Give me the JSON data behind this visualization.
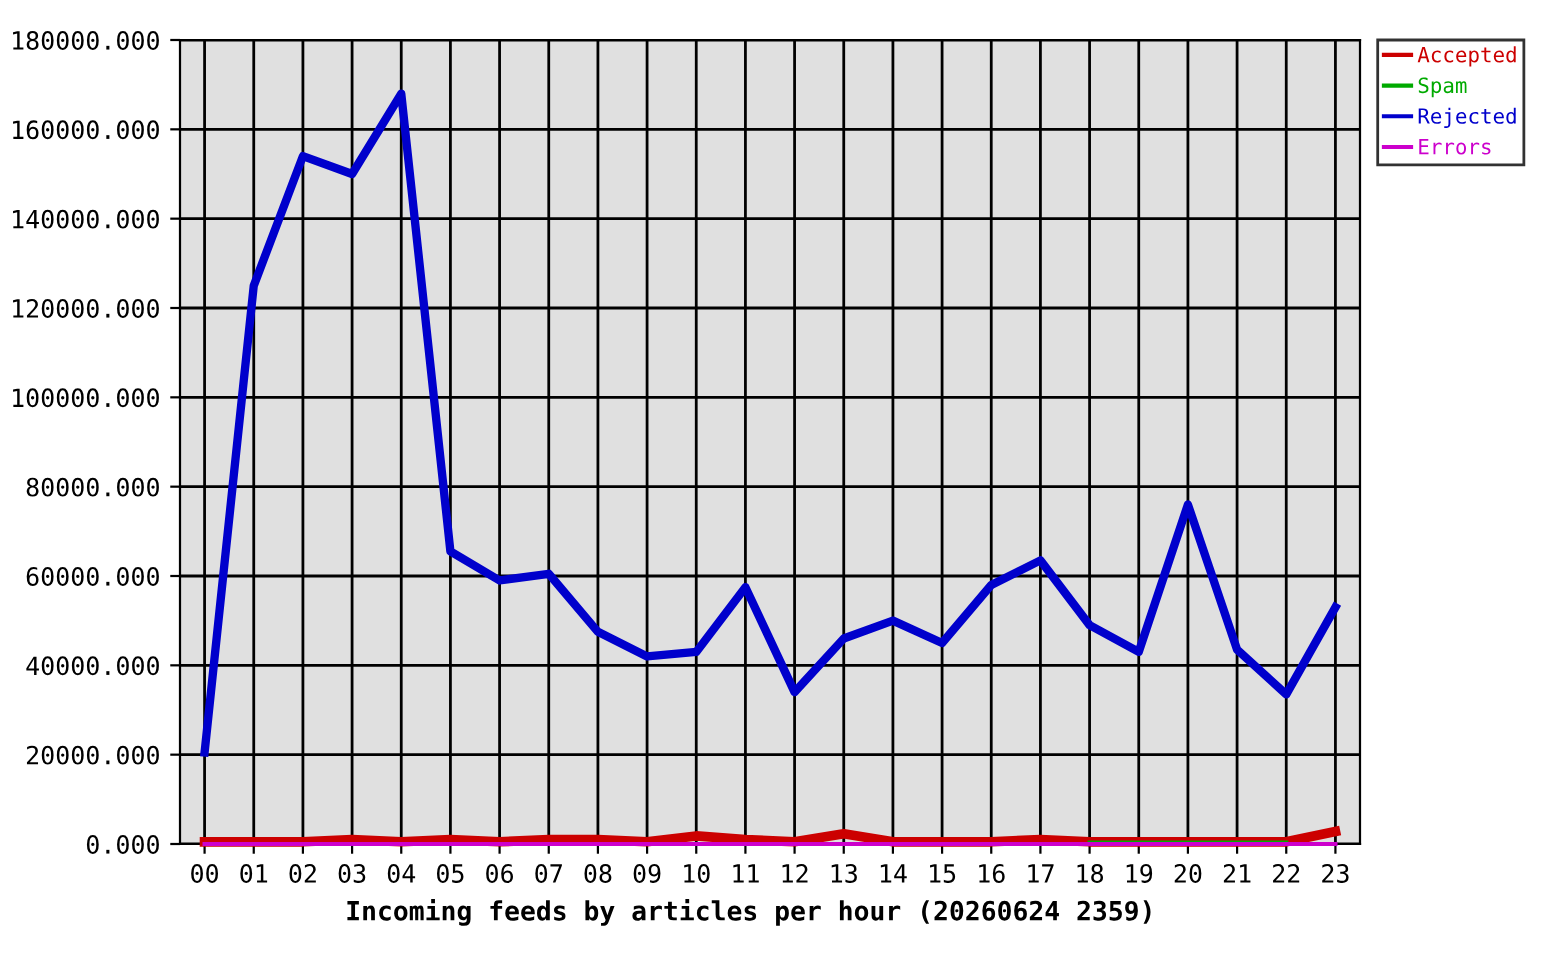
{
  "chart_data": {
    "type": "line",
    "xlabel": "Incoming feeds by articles per hour (20260624 2359)",
    "categories": [
      "00",
      "01",
      "02",
      "03",
      "04",
      "05",
      "06",
      "07",
      "08",
      "09",
      "10",
      "11",
      "12",
      "13",
      "14",
      "15",
      "16",
      "17",
      "18",
      "19",
      "20",
      "21",
      "22",
      "23"
    ],
    "series": [
      {
        "name": "Accepted",
        "color": "#cc0000",
        "values": [
          500,
          500,
          500,
          1000,
          500,
          1000,
          500,
          1000,
          1000,
          500,
          1800,
          1000,
          500,
          2300,
          500,
          500,
          500,
          1000,
          500,
          500,
          500,
          500,
          500,
          2800
        ]
      },
      {
        "name": "Spam",
        "color": "#00aa00",
        "values": [
          null,
          null,
          null,
          null,
          null,
          null,
          null,
          null,
          null,
          null,
          null,
          null,
          null,
          null,
          null,
          null,
          null,
          null,
          300,
          300,
          300,
          300,
          300,
          null
        ]
      },
      {
        "name": "Rejected",
        "color": "#0000cc",
        "values": [
          20500,
          125000,
          154000,
          150000,
          168000,
          65500,
          59000,
          60500,
          47500,
          42000,
          43000,
          57500,
          34000,
          46000,
          50000,
          45000,
          58000,
          63500,
          49000,
          43000,
          76000,
          43500,
          33500,
          53000
        ]
      },
      {
        "name": "Errors",
        "color": "#cc00cc",
        "values": [
          0,
          0,
          0,
          0,
          0,
          0,
          0,
          0,
          0,
          0,
          0,
          0,
          0,
          0,
          0,
          0,
          0,
          0,
          0,
          0,
          0,
          0,
          0,
          0
        ]
      }
    ],
    "ylim": [
      0,
      180000
    ],
    "yticks": [
      {
        "value": 0,
        "label": "0.000"
      },
      {
        "value": 20000,
        "label": "20000.000"
      },
      {
        "value": 40000,
        "label": "40000.000"
      },
      {
        "value": 60000,
        "label": "60000.000"
      },
      {
        "value": 80000,
        "label": "80000.000"
      },
      {
        "value": 100000,
        "label": "100000.000"
      },
      {
        "value": 120000,
        "label": "120000.000"
      },
      {
        "value": 140000,
        "label": "140000.000"
      },
      {
        "value": 160000,
        "label": "160000.000"
      },
      {
        "value": 180000,
        "label": "180000.000"
      }
    ],
    "grid": true,
    "legend": "top right",
    "line_style": "solid"
  }
}
